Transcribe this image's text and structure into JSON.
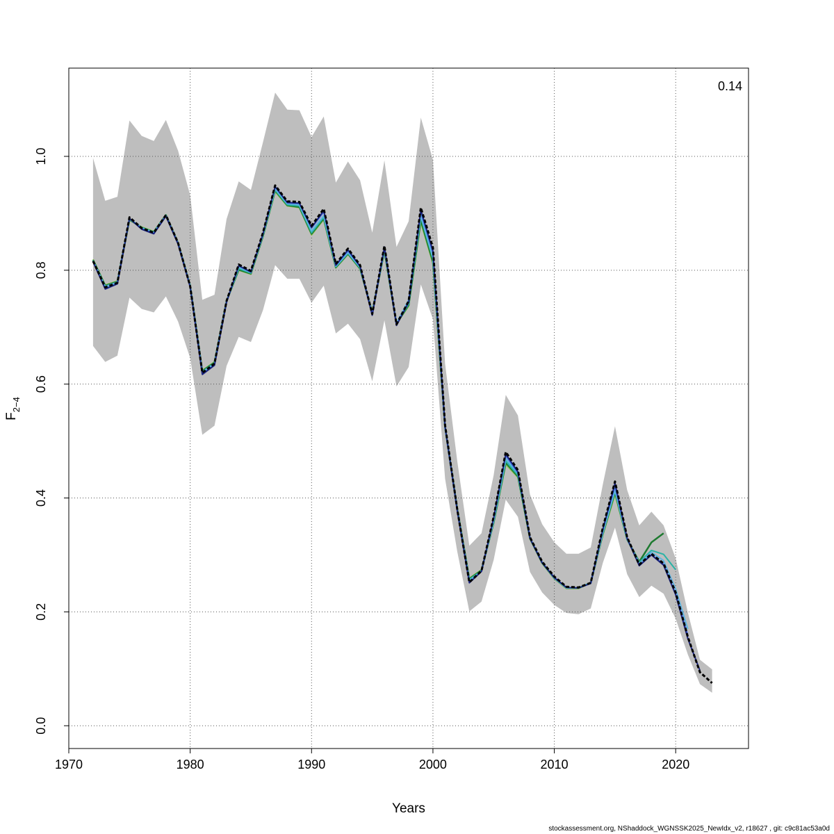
{
  "footer": "stockassessment.org, NShaddock_WGNSSK2025_NewIdx_v2, r18627 , git: c9c81ac53a0d",
  "chart_data": {
    "type": "line",
    "title": "",
    "xlabel": "Years",
    "ylabel_main": "F",
    "ylabel_sub": "2−4",
    "annotation": "0.14",
    "xlim": [
      1970,
      2026
    ],
    "ylim": [
      -0.04,
      1.155
    ],
    "xticks": [
      "1970",
      "1980",
      "1990",
      "2000",
      "2010",
      "2020"
    ],
    "yticks": [
      "0.0",
      "0.2",
      "0.4",
      "0.6",
      "0.8",
      "1.0"
    ],
    "grid": true,
    "band_color": "#bebebe",
    "band": {
      "x": [
        1972,
        1973,
        1974,
        1975,
        1976,
        1977,
        1978,
        1979,
        1980,
        1981,
        1982,
        1983,
        1984,
        1985,
        1986,
        1987,
        1988,
        1989,
        1990,
        1991,
        1992,
        1993,
        1994,
        1995,
        1996,
        1997,
        1998,
        1999,
        2000,
        2001,
        2002,
        2003,
        2004,
        2005,
        2006,
        2007,
        2008,
        2009,
        2010,
        2011,
        2012,
        2013,
        2014,
        2015,
        2016,
        2017,
        2018,
        2019,
        2020,
        2021,
        2022,
        2023
      ],
      "lower": [
        0.667,
        0.639,
        0.65,
        0.752,
        0.732,
        0.726,
        0.754,
        0.71,
        0.646,
        0.511,
        0.527,
        0.632,
        0.683,
        0.674,
        0.73,
        0.809,
        0.785,
        0.785,
        0.743,
        0.773,
        0.689,
        0.706,
        0.679,
        0.605,
        0.712,
        0.596,
        0.63,
        0.775,
        0.714,
        0.434,
        0.306,
        0.201,
        0.218,
        0.291,
        0.397,
        0.367,
        0.27,
        0.234,
        0.212,
        0.198,
        0.196,
        0.206,
        0.286,
        0.348,
        0.266,
        0.226,
        0.246,
        0.232,
        0.188,
        0.125,
        0.073,
        0.058
      ],
      "upper": [
        0.997,
        0.922,
        0.929,
        1.063,
        1.036,
        1.027,
        1.064,
        1.01,
        0.932,
        0.748,
        0.757,
        0.89,
        0.956,
        0.941,
        1.025,
        1.112,
        1.082,
        1.081,
        1.034,
        1.07,
        0.954,
        0.991,
        0.958,
        0.866,
        0.993,
        0.841,
        0.886,
        1.068,
        0.994,
        0.636,
        0.465,
        0.316,
        0.338,
        0.44,
        0.581,
        0.545,
        0.406,
        0.354,
        0.322,
        0.302,
        0.302,
        0.313,
        0.424,
        0.526,
        0.414,
        0.352,
        0.376,
        0.352,
        0.294,
        0.199,
        0.116,
        0.099
      ]
    },
    "series": [
      {
        "color": "#000000",
        "dashed": true,
        "width": 3,
        "x": [
          1972,
          1973,
          1974,
          1975,
          1976,
          1977,
          1978,
          1979,
          1980,
          1981,
          1982,
          1983,
          1984,
          1985,
          1986,
          1987,
          1988,
          1989,
          1990,
          1991,
          1992,
          1993,
          1994,
          1995,
          1996,
          1997,
          1998,
          1999,
          2000,
          2001,
          2002,
          2003,
          2004,
          2005,
          2006,
          2007,
          2008,
          2009,
          2010,
          2011,
          2012,
          2013,
          2014,
          2015,
          2016,
          2017,
          2018,
          2019,
          2020,
          2021,
          2022,
          2023
        ],
        "values": [
          0.816,
          0.77,
          0.778,
          0.893,
          0.874,
          0.866,
          0.897,
          0.848,
          0.772,
          0.62,
          0.636,
          0.746,
          0.81,
          0.799,
          0.866,
          0.949,
          0.921,
          0.92,
          0.878,
          0.908,
          0.811,
          0.838,
          0.809,
          0.723,
          0.843,
          0.705,
          0.746,
          0.91,
          0.84,
          0.528,
          0.38,
          0.252,
          0.272,
          0.367,
          0.481,
          0.449,
          0.331,
          0.288,
          0.262,
          0.244,
          0.243,
          0.251,
          0.348,
          0.429,
          0.331,
          0.283,
          0.302,
          0.285,
          0.234,
          0.156,
          0.094,
          0.075
        ]
      },
      {
        "color": "#1a237e",
        "dashed": false,
        "width": 2,
        "x": [
          1972,
          1973,
          1974,
          1975,
          1976,
          1977,
          1978,
          1979,
          1980,
          1981,
          1982,
          1983,
          1984,
          1985,
          1986,
          1987,
          1988,
          1989,
          1990,
          1991,
          1992,
          1993,
          1994,
          1995,
          1996,
          1997,
          1998,
          1999,
          2000,
          2001,
          2002,
          2003,
          2004,
          2005,
          2006,
          2007,
          2008,
          2009,
          2010,
          2011,
          2012,
          2013,
          2014,
          2015,
          2016,
          2017,
          2018,
          2019,
          2020,
          2021,
          2022
        ],
        "values": [
          0.815,
          0.767,
          0.776,
          0.891,
          0.872,
          0.864,
          0.895,
          0.846,
          0.771,
          0.617,
          0.633,
          0.744,
          0.808,
          0.797,
          0.864,
          0.947,
          0.919,
          0.918,
          0.875,
          0.905,
          0.809,
          0.836,
          0.807,
          0.721,
          0.841,
          0.703,
          0.744,
          0.906,
          0.834,
          0.525,
          0.378,
          0.251,
          0.271,
          0.365,
          0.477,
          0.446,
          0.329,
          0.286,
          0.26,
          0.243,
          0.242,
          0.25,
          0.345,
          0.426,
          0.329,
          0.281,
          0.3,
          0.282,
          0.23,
          0.153,
          0.097
        ]
      },
      {
        "color": "#4169e1",
        "dashed": false,
        "width": 1.5,
        "x": [
          1972,
          1973,
          1974,
          1975,
          1976,
          1977,
          1978,
          1979,
          1980,
          1981,
          1982,
          1983,
          1984,
          1985,
          1986,
          1987,
          1988,
          1989,
          1990,
          1991,
          1992,
          1993,
          1994,
          1995,
          1996,
          1997,
          1998,
          1999,
          2000,
          2001,
          2002,
          2003,
          2004,
          2005,
          2006,
          2007,
          2008,
          2009,
          2010,
          2011,
          2012,
          2013,
          2014,
          2015,
          2016,
          2017,
          2018,
          2019,
          2020,
          2021
        ],
        "values": [
          0.815,
          0.768,
          0.777,
          0.891,
          0.873,
          0.865,
          0.896,
          0.847,
          0.771,
          0.618,
          0.634,
          0.745,
          0.808,
          0.797,
          0.864,
          0.946,
          0.918,
          0.917,
          0.874,
          0.902,
          0.808,
          0.834,
          0.806,
          0.722,
          0.838,
          0.704,
          0.743,
          0.902,
          0.83,
          0.524,
          0.378,
          0.252,
          0.271,
          0.364,
          0.474,
          0.444,
          0.33,
          0.287,
          0.261,
          0.243,
          0.242,
          0.25,
          0.344,
          0.42,
          0.328,
          0.282,
          0.301,
          0.284,
          0.232,
          0.16
        ]
      },
      {
        "color": "#5fb4e0",
        "dashed": false,
        "width": 2,
        "x": [
          1972,
          1973,
          1974,
          1975,
          1976,
          1977,
          1978,
          1979,
          1980,
          1981,
          1982,
          1983,
          1984,
          1985,
          1986,
          1987,
          1988,
          1989,
          1990,
          1991,
          1992,
          1993,
          1994,
          1995,
          1996,
          1997,
          1998,
          1999,
          2000,
          2001,
          2002,
          2003,
          2004,
          2005,
          2006,
          2007,
          2008,
          2009,
          2010,
          2011,
          2012,
          2013,
          2014,
          2015,
          2016,
          2017,
          2018,
          2019,
          2020,
          2021
        ],
        "values": [
          0.816,
          0.771,
          0.779,
          0.89,
          0.874,
          0.866,
          0.896,
          0.847,
          0.772,
          0.621,
          0.636,
          0.745,
          0.805,
          0.796,
          0.862,
          0.943,
          0.917,
          0.915,
          0.869,
          0.896,
          0.807,
          0.831,
          0.805,
          0.724,
          0.836,
          0.707,
          0.748,
          0.896,
          0.822,
          0.522,
          0.378,
          0.255,
          0.271,
          0.36,
          0.469,
          0.443,
          0.33,
          0.287,
          0.259,
          0.242,
          0.242,
          0.25,
          0.339,
          0.414,
          0.327,
          0.285,
          0.305,
          0.29,
          0.24,
          0.17
        ]
      },
      {
        "color": "#2ab3a6",
        "dashed": false,
        "width": 2,
        "x": [
          1972,
          1973,
          1974,
          1975,
          1976,
          1977,
          1978,
          1979,
          1980,
          1981,
          1982,
          1983,
          1984,
          1985,
          1986,
          1987,
          1988,
          1989,
          1990,
          1991,
          1992,
          1993,
          1994,
          1995,
          1996,
          1997,
          1998,
          1999,
          2000,
          2001,
          2002,
          2003,
          2004,
          2005,
          2006,
          2007,
          2008,
          2009,
          2010,
          2011,
          2012,
          2013,
          2014,
          2015,
          2016,
          2017,
          2018,
          2019,
          2020
        ],
        "values": [
          0.817,
          0.772,
          0.779,
          0.89,
          0.875,
          0.867,
          0.896,
          0.847,
          0.773,
          0.622,
          0.637,
          0.745,
          0.803,
          0.795,
          0.861,
          0.941,
          0.915,
          0.913,
          0.866,
          0.893,
          0.806,
          0.83,
          0.804,
          0.725,
          0.835,
          0.706,
          0.741,
          0.893,
          0.82,
          0.524,
          0.38,
          0.257,
          0.272,
          0.358,
          0.465,
          0.44,
          0.329,
          0.286,
          0.259,
          0.242,
          0.242,
          0.251,
          0.338,
          0.412,
          0.327,
          0.287,
          0.308,
          0.301,
          0.274
        ]
      },
      {
        "color": "#1e7a30",
        "dashed": false,
        "width": 2.5,
        "x": [
          1972,
          1973,
          1974,
          1975,
          1976,
          1977,
          1978,
          1979,
          1980,
          1981,
          1982,
          1983,
          1984,
          1985,
          1986,
          1987,
          1988,
          1989,
          1990,
          1991,
          1992,
          1993,
          1994,
          1995,
          1996,
          1997,
          1998,
          1999,
          2000,
          2001,
          2002,
          2003,
          2004,
          2005,
          2006,
          2007,
          2008,
          2009,
          2010,
          2011,
          2012,
          2013,
          2014,
          2015,
          2016,
          2017,
          2018,
          2019
        ],
        "values": [
          0.818,
          0.773,
          0.78,
          0.889,
          0.875,
          0.867,
          0.897,
          0.848,
          0.773,
          0.623,
          0.638,
          0.746,
          0.801,
          0.794,
          0.86,
          0.94,
          0.914,
          0.911,
          0.864,
          0.891,
          0.805,
          0.829,
          0.803,
          0.726,
          0.834,
          0.706,
          0.739,
          0.888,
          0.815,
          0.524,
          0.381,
          0.258,
          0.273,
          0.357,
          0.462,
          0.438,
          0.329,
          0.286,
          0.259,
          0.242,
          0.242,
          0.251,
          0.337,
          0.41,
          0.327,
          0.288,
          0.322,
          0.338
        ]
      },
      {
        "color": "#8bc34a",
        "dashed": false,
        "width": 2,
        "x": [
          1972,
          1973,
          1974,
          1975,
          1976,
          1977,
          1978,
          1979,
          1980,
          1981,
          1982,
          1983,
          1984,
          1985,
          1986,
          1987,
          1988,
          1989,
          1990,
          1991,
          1992,
          1993,
          1994,
          1995,
          1996,
          1997,
          1998,
          1999,
          2000,
          2001,
          2002,
          2003,
          2004,
          2005,
          2006,
          2007,
          2008,
          2009,
          2010,
          2011,
          2012,
          2013,
          2014,
          2015,
          2016,
          2017,
          2018
        ],
        "values": [
          0.819,
          0.774,
          0.781,
          0.888,
          0.876,
          0.868,
          0.897,
          0.848,
          0.774,
          0.624,
          0.639,
          0.746,
          0.8,
          0.793,
          0.859,
          0.938,
          0.913,
          0.91,
          0.862,
          0.889,
          0.804,
          0.828,
          0.802,
          0.727,
          0.833,
          0.706,
          0.737,
          0.884,
          0.812,
          0.524,
          0.382,
          0.259,
          0.274,
          0.356,
          0.459,
          0.436,
          0.328,
          0.285,
          0.258,
          0.241,
          0.241,
          0.251,
          0.335,
          0.406,
          0.326,
          0.287,
          0.306
        ]
      }
    ]
  }
}
